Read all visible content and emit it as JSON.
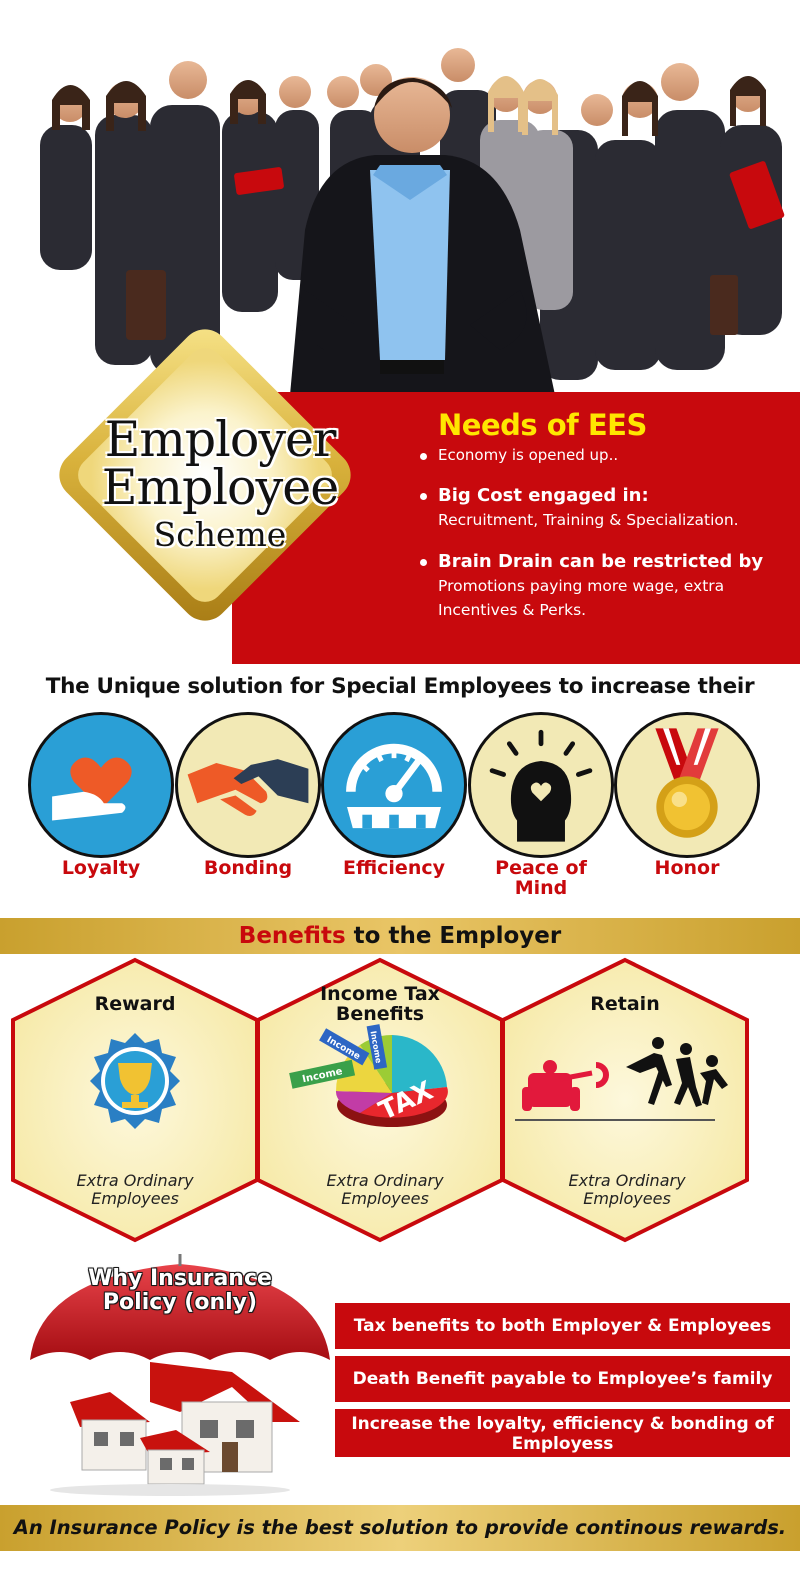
{
  "scheme": {
    "line1": "Employer",
    "line2": "Employee",
    "line3": "Scheme"
  },
  "needs": {
    "title": "Needs of EES",
    "items": [
      {
        "bold": "",
        "text": "Economy is opened up.."
      },
      {
        "bold": "Big Cost engaged in:",
        "text": "Recruitment, Training & Specialization."
      },
      {
        "bold": "Brain Drain can be restricted by",
        "text": "Promotions paying more wage, extra Incentives & Perks."
      }
    ]
  },
  "unique": {
    "heading": "The Unique solution for Special Employees to increase their",
    "items": [
      {
        "label": "Loyalty",
        "icon": "heart-in-hand-icon",
        "bg": "#2a9fd6"
      },
      {
        "label": "Bonding",
        "icon": "handshake-icon",
        "bg": "#f2e9b5"
      },
      {
        "label": "Efficiency",
        "icon": "gauge-gear-icon",
        "bg": "#2a9fd6"
      },
      {
        "label": "Peace of Mind",
        "icon": "head-heart-icon",
        "bg": "#f2e9b5"
      },
      {
        "label": "Honor",
        "icon": "medal-icon",
        "bg": "#f2e9b5"
      }
    ]
  },
  "benefits": {
    "heading_red": "Benefits",
    "heading_rest": " to the Employer",
    "items": [
      {
        "title": "Reward",
        "subtitle": "Extra Ordinary Employees",
        "icon": "trophy-badge-icon"
      },
      {
        "title": "Income Tax Benefits",
        "subtitle": "Extra Ordinary Employees",
        "icon": "tax-pie-icon",
        "pie_labels": [
          "Income",
          "Income",
          "Income",
          "TAX"
        ]
      },
      {
        "title": "Retain",
        "subtitle": "Extra Ordinary Employees",
        "icon": "magnet-people-icon"
      }
    ]
  },
  "why": {
    "title": "Why Insurance Policy (only)",
    "items": [
      "Tax benefits to both Employer & Employees",
      "Death Benefit payable to Employee’s family",
      "Increase the loyalty, efficiency & bonding of Employess"
    ]
  },
  "footer": {
    "text": "An Insurance Policy is the best solution to provide continous rewards."
  },
  "colors": {
    "red": "#c8090d",
    "yellow": "#ffe600",
    "gold": "#d4ae3f",
    "blue": "#2a9fd6",
    "cream": "#f8eeb0"
  }
}
